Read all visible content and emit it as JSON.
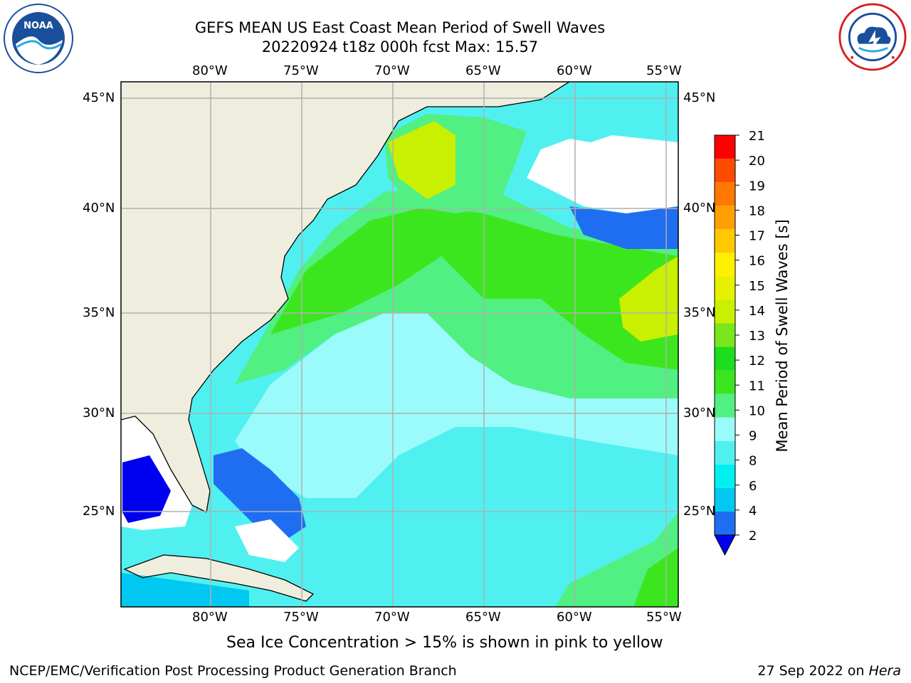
{
  "title": {
    "line1": "GEFS MEAN US East Coast Mean Period of Swell Waves",
    "line2": "20220924 t18z 000h fcst   Max: 15.57"
  },
  "logos": {
    "left": {
      "icon": "noaa-logo",
      "text": "NOAA",
      "ring_text": "NATIONAL OCEANIC AND ATMOSPHERIC ADMINISTRATION · U.S. DEPARTMENT OF COMMERCE"
    },
    "right": {
      "icon": "nws-logo",
      "ring_text": "NATIONAL WEATHER SERVICE"
    }
  },
  "map": {
    "lon_ticks": [
      "80°W",
      "75°W",
      "70°W",
      "65°W",
      "60°W",
      "55°W"
    ],
    "lat_ticks": [
      "45°N",
      "40°N",
      "35°N",
      "30°N",
      "25°N"
    ],
    "grid": true,
    "colors": {
      "land": "#efeede",
      "grid": "#b0b0b0",
      "coast": "#000000",
      "nodata": "#ffffff"
    }
  },
  "colorbar": {
    "label": "Mean Period of Swell Waves [s]",
    "ticks": [
      "2",
      "4",
      "6",
      "8",
      "9",
      "10",
      "11",
      "12",
      "13",
      "14",
      "15",
      "16",
      "17",
      "18",
      "19",
      "20",
      "21"
    ],
    "colors": [
      "#1f6ef2",
      "#00c8f0",
      "#00f0f0",
      "#50f0f0",
      "#9bfbfb",
      "#50f082",
      "#3ce61e",
      "#1edc1e",
      "#7ae61e",
      "#c8f000",
      "#e6f000",
      "#fff000",
      "#ffc800",
      "#ffa000",
      "#ff7800",
      "#ff4b00",
      "#ff0000"
    ],
    "under_color": "#0000f0"
  },
  "footer": {
    "note": "Sea Ice Concentration > 15% is shown in pink to yellow",
    "credit": "NCEP/EMC/Verification Post Processing Product Generation Branch",
    "date": "27 Sep 2022 on",
    "machine": "Hera"
  }
}
